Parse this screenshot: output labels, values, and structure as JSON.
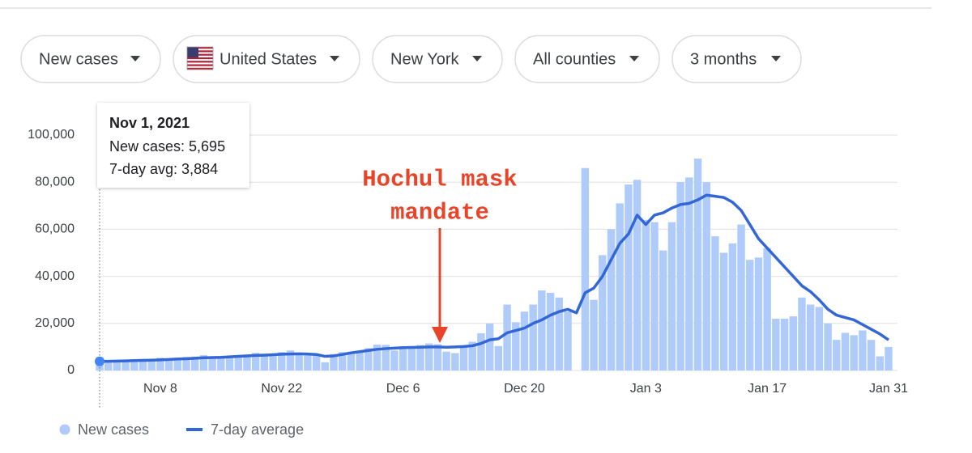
{
  "filters": [
    "New cases",
    "United States",
    "New York",
    "All counties",
    "3 months"
  ],
  "chart_data": {
    "type": "bar",
    "categories": [
      null,
      null,
      null,
      null,
      null,
      null,
      null,
      "Nov 8",
      null,
      null,
      null,
      null,
      null,
      null,
      null,
      null,
      null,
      null,
      null,
      null,
      null,
      "Nov 22",
      null,
      null,
      null,
      null,
      null,
      null,
      null,
      null,
      null,
      null,
      null,
      null,
      null,
      "Dec 6",
      null,
      null,
      null,
      null,
      null,
      null,
      null,
      null,
      null,
      null,
      null,
      null,
      null,
      "Dec 20",
      null,
      null,
      null,
      null,
      null,
      null,
      null,
      null,
      null,
      null,
      null,
      null,
      null,
      "Jan 3",
      null,
      null,
      null,
      null,
      null,
      null,
      null,
      null,
      null,
      null,
      null,
      null,
      null,
      "Jan 17",
      null,
      null,
      null,
      null,
      null,
      null,
      null,
      null,
      null,
      null,
      null,
      null,
      null,
      "Jan 31"
    ],
    "series": [
      {
        "name": "New cases",
        "type": "bar",
        "color": "#aecbfa",
        "values": [
          5695,
          4200,
          4300,
          4500,
          4700,
          4900,
          4000,
          5400,
          5000,
          5300,
          5800,
          5900,
          6500,
          5500,
          5900,
          6200,
          6400,
          6800,
          7500,
          7200,
          6600,
          7800,
          8500,
          6900,
          7100,
          6300,
          3500,
          7000,
          7800,
          8000,
          7800,
          9500,
          11000,
          10900,
          8500,
          9200,
          10200,
          10800,
          11500,
          11200,
          8000,
          7400,
          10300,
          12200,
          15800,
          19900,
          10400,
          28000,
          20500,
          25000,
          28000,
          34000,
          33000,
          31000,
          25000,
          null,
          86000,
          30000,
          49000,
          60000,
          71000,
          79000,
          81000,
          64000,
          63000,
          51000,
          63000,
          80000,
          82000,
          90000,
          80000,
          57000,
          50000,
          54000,
          62000,
          47000,
          48000,
          52000,
          22000,
          22000,
          23000,
          31000,
          28000,
          27000,
          20000,
          13000,
          16000,
          15000,
          17000,
          13000,
          6000,
          10000
        ]
      },
      {
        "name": "7-day average",
        "type": "line",
        "color": "#3367d6",
        "values": [
          3884,
          3900,
          4000,
          4100,
          4200,
          4300,
          4400,
          4500,
          4700,
          4900,
          5000,
          5200,
          5400,
          5500,
          5600,
          5800,
          6000,
          6200,
          6400,
          6500,
          6700,
          6900,
          7000,
          7100,
          7000,
          6800,
          6000,
          6200,
          6800,
          7500,
          8000,
          8500,
          9000,
          9300,
          9500,
          9700,
          9800,
          9900,
          10000,
          10000,
          9900,
          10000,
          10200,
          10500,
          11500,
          13000,
          13500,
          16000,
          17000,
          18000,
          20000,
          21500,
          23500,
          25000,
          26000,
          24500,
          33000,
          35000,
          40000,
          47000,
          54000,
          58000,
          66000,
          62000,
          66000,
          67000,
          69000,
          70500,
          71000,
          72500,
          74500,
          74000,
          73500,
          71500,
          68000,
          62000,
          56000,
          52000,
          48000,
          44000,
          40000,
          36000,
          33500,
          30000,
          26000,
          23500,
          22500,
          21500,
          19500,
          17500,
          15500,
          13000
        ]
      }
    ],
    "ylim": [
      0,
      100000
    ],
    "yticks": [
      0,
      {
        "value": 20000,
        "label": "20,000"
      },
      {
        "value": 40000,
        "label": "40,000"
      },
      {
        "value": 60000,
        "label": "60,000"
      },
      {
        "value": 80000,
        "label": "80,000"
      },
      {
        "value": 100000,
        "label": "100,000"
      }
    ],
    "grid": true,
    "tooltip": {
      "title": "Nov 1, 2021",
      "lines": [
        "New cases: 5,695",
        "7-day avg: 3,884"
      ]
    },
    "annotation": {
      "lines": [
        "Hochul mask",
        "mandate"
      ],
      "color": "#e8442a"
    }
  }
}
